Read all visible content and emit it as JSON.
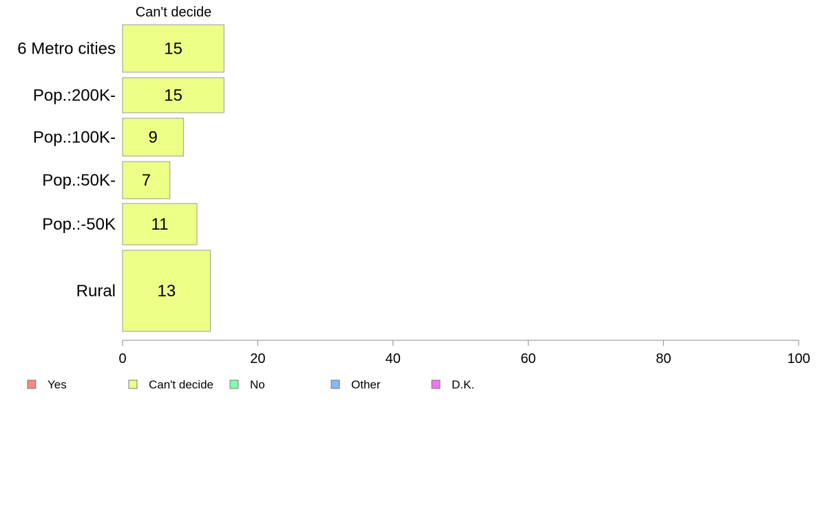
{
  "chart_data": {
    "type": "bar",
    "orientation": "horizontal",
    "stacked": true,
    "title": "Can't decide",
    "categories": [
      "6 Metro cities",
      "Pop.:200K-",
      "Pop.:100K-",
      "Pop.:50K-",
      "Pop.:-50K",
      "Rural"
    ],
    "series": [
      {
        "name": "Can't decide",
        "values": [
          15,
          15,
          9,
          7,
          11,
          13
        ]
      }
    ],
    "xlim": [
      0,
      100
    ],
    "xticks": [
      0,
      20,
      40,
      60,
      80,
      100
    ],
    "grid": false,
    "legend": {
      "placement": "bottom",
      "items": [
        {
          "label": "Yes",
          "color": "#f28b82"
        },
        {
          "label": "Can't decide",
          "color": "#eeff88"
        },
        {
          "label": "No",
          "color": "#80ffb0"
        },
        {
          "label": "Other",
          "color": "#88b8ff"
        },
        {
          "label": "D.K.",
          "color": "#ee77ee"
        }
      ]
    },
    "bar_color": "#eeff88"
  }
}
